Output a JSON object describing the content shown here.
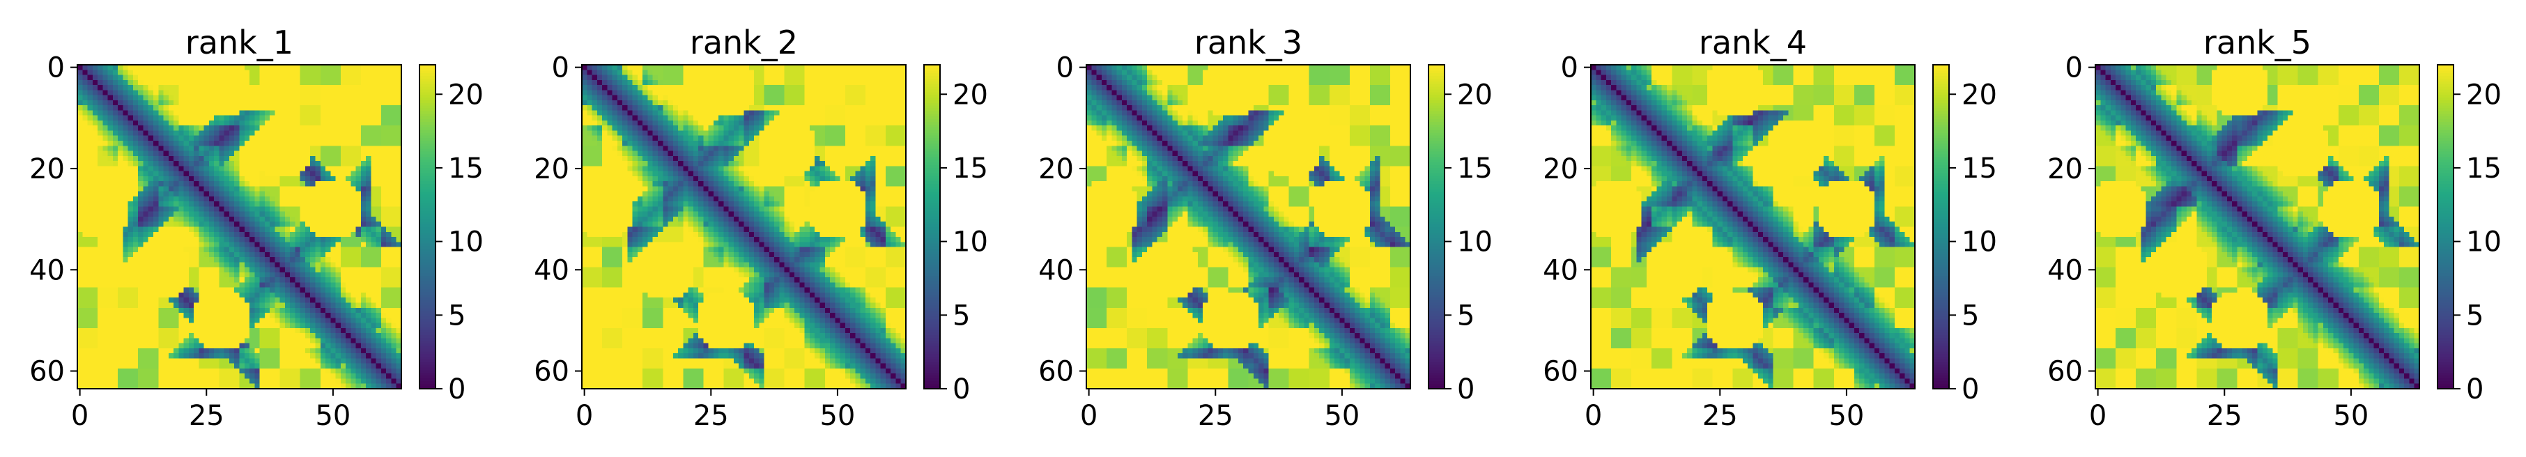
{
  "chart_data": [
    {
      "type": "heatmap",
      "title": "rank_1",
      "rows": 64,
      "cols": 64,
      "xlim": [
        0,
        63
      ],
      "ylim": [
        63,
        0
      ],
      "x_ticks": [
        0,
        25,
        50
      ],
      "y_ticks": [
        0,
        20,
        40,
        60
      ],
      "colorbar": {
        "range": [
          0,
          22
        ],
        "ticks": [
          0,
          5,
          10,
          15,
          20
        ]
      },
      "colormap": "viridis",
      "variant": 0,
      "description_of_values": "pairwise distance-like map, zero on the diagonal, saturated at 22"
    },
    {
      "type": "heatmap",
      "title": "rank_2",
      "rows": 64,
      "cols": 64,
      "xlim": [
        0,
        63
      ],
      "ylim": [
        63,
        0
      ],
      "x_ticks": [
        0,
        25,
        50
      ],
      "y_ticks": [
        0,
        20,
        40,
        60
      ],
      "colorbar": {
        "range": [
          0,
          22
        ],
        "ticks": [
          0,
          5,
          10,
          15,
          20
        ]
      },
      "colormap": "viridis",
      "variant": 1
    },
    {
      "type": "heatmap",
      "title": "rank_3",
      "rows": 64,
      "cols": 64,
      "xlim": [
        0,
        63
      ],
      "ylim": [
        63,
        0
      ],
      "x_ticks": [
        0,
        25,
        50
      ],
      "y_ticks": [
        0,
        20,
        40,
        60
      ],
      "colorbar": {
        "range": [
          0,
          22
        ],
        "ticks": [
          0,
          5,
          10,
          15,
          20
        ]
      },
      "colormap": "viridis",
      "variant": 2
    },
    {
      "type": "heatmap",
      "title": "rank_4",
      "rows": 64,
      "cols": 64,
      "xlim": [
        0,
        63
      ],
      "ylim": [
        63,
        0
      ],
      "x_ticks": [
        0,
        25,
        50
      ],
      "y_ticks": [
        0,
        20,
        40,
        60
      ],
      "colorbar": {
        "range": [
          0,
          22
        ],
        "ticks": [
          0,
          5,
          10,
          15,
          20
        ]
      },
      "colormap": "viridis",
      "variant": 3
    },
    {
      "type": "heatmap",
      "title": "rank_5",
      "rows": 64,
      "cols": 64,
      "xlim": [
        0,
        63
      ],
      "ylim": [
        63,
        0
      ],
      "x_ticks": [
        0,
        25,
        50
      ],
      "y_ticks": [
        0,
        20,
        40,
        60
      ],
      "colorbar": {
        "range": [
          0,
          22
        ],
        "ticks": [
          0,
          5,
          10,
          15,
          20
        ]
      },
      "colormap": "viridis",
      "variant": 4
    }
  ]
}
